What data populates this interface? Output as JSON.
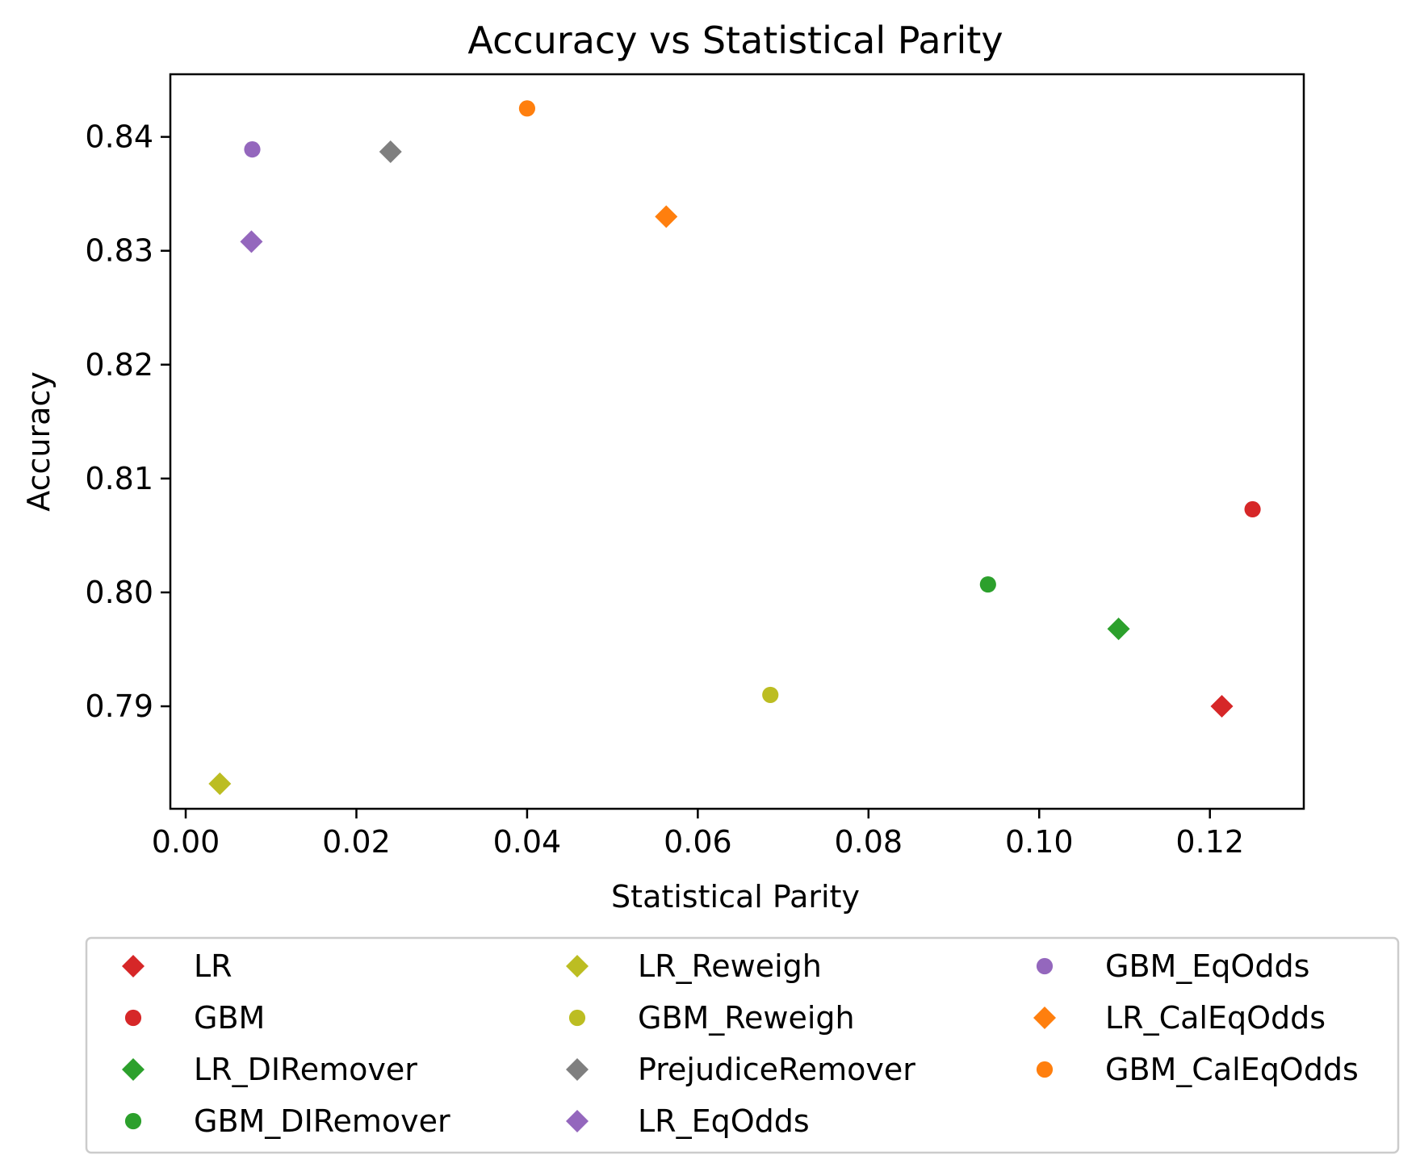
{
  "chart_data": {
    "type": "scatter",
    "title": "Accuracy vs Statistical Parity",
    "xlabel": "Statistical Parity",
    "ylabel": "Accuracy",
    "xlim": [
      -0.0018,
      0.131
    ],
    "ylim": [
      0.781,
      0.8455
    ],
    "xticks": [
      0.0,
      0.02,
      0.04,
      0.06,
      0.08,
      0.1,
      0.12
    ],
    "xtick_labels": [
      "0.00",
      "0.02",
      "0.04",
      "0.06",
      "0.08",
      "0.10",
      "0.12"
    ],
    "yticks": [
      0.79,
      0.8,
      0.81,
      0.82,
      0.83,
      0.84
    ],
    "ytick_labels": [
      "0.79",
      "0.80",
      "0.81",
      "0.82",
      "0.83",
      "0.84"
    ],
    "grid": false,
    "legend_position": "bottom-outside",
    "legend_columns": 3,
    "series": [
      {
        "name": "LR",
        "marker": "diamond",
        "color": "#d62728",
        "x": 0.1214,
        "y": 0.79
      },
      {
        "name": "GBM",
        "marker": "circle",
        "color": "#d62728",
        "x": 0.125,
        "y": 0.8073
      },
      {
        "name": "LR_DIRemover",
        "marker": "diamond",
        "color": "#2ca02c",
        "x": 0.1093,
        "y": 0.7968
      },
      {
        "name": "GBM_DIRemover",
        "marker": "circle",
        "color": "#2ca02c",
        "x": 0.094,
        "y": 0.8007
      },
      {
        "name": "LR_Reweigh",
        "marker": "diamond",
        "color": "#bcbd22",
        "x": 0.004,
        "y": 0.7832
      },
      {
        "name": "GBM_Reweigh",
        "marker": "circle",
        "color": "#bcbd22",
        "x": 0.0685,
        "y": 0.791
      },
      {
        "name": "PrejudiceRemover",
        "marker": "diamond",
        "color": "#7f7f7f",
        "x": 0.024,
        "y": 0.8387
      },
      {
        "name": "LR_EqOdds",
        "marker": "diamond",
        "color": "#9467bd",
        "x": 0.0077,
        "y": 0.8308
      },
      {
        "name": "GBM_EqOdds",
        "marker": "circle",
        "color": "#9467bd",
        "x": 0.0078,
        "y": 0.8389
      },
      {
        "name": "LR_CalEqOdds",
        "marker": "diamond",
        "color": "#ff7f0e",
        "x": 0.0563,
        "y": 0.833
      },
      {
        "name": "GBM_CalEqOdds",
        "marker": "circle",
        "color": "#ff7f0e",
        "x": 0.04,
        "y": 0.8425
      }
    ]
  }
}
